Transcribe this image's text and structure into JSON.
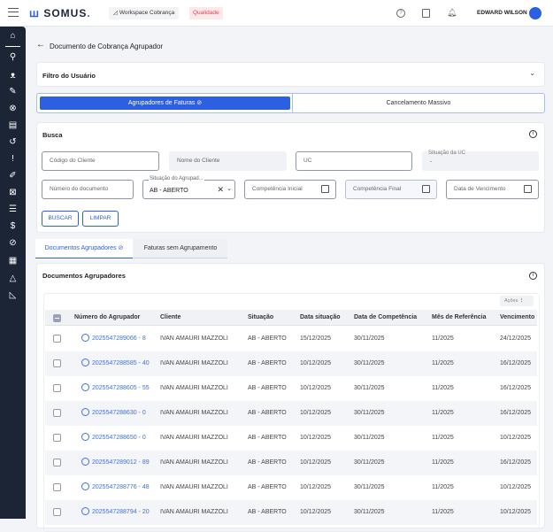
{
  "header": {
    "logo": "SOMUS",
    "workspace": "Workspace Cobrança",
    "env_badge": "Qualidade",
    "user": "EDWARD WILSON"
  },
  "page": {
    "title": "Documento de Cobrança Agrupador"
  },
  "filtro": {
    "title": "Filtro do Usuário"
  },
  "main_tabs": [
    {
      "label": "Agrupadores de Faturas ⊘"
    },
    {
      "label": "Cancelamento Massivo"
    }
  ],
  "busca": {
    "title": "Busca",
    "fields": {
      "codigo_cliente": "Código do Cliente",
      "nome_cliente": "Nome do Cliente",
      "uc": "UC",
      "situacao_uc_label": "Situação da UC",
      "situacao_uc_value": "-",
      "numero_documento": "Número do documento",
      "situacao_agrupador_label": "Situação do Agrupad...",
      "situacao_agrupador_value": "AB - ABERTO",
      "competencia_inicial": "Competência Inicial",
      "competencia_final": "Competência Final",
      "data_vencimento": "Data de Vencimento"
    },
    "buscar": "BUSCAR",
    "limpar": "LIMPAR"
  },
  "sub_tabs": [
    {
      "label": "Documentos Agrupadores ⊘"
    },
    {
      "label": "Faturas sem Agrupamento"
    }
  ],
  "docs": {
    "title": "Documentos Agrupadores",
    "acoes": "Ações",
    "columns": [
      "Número do Agrupador",
      "Cliente",
      "Situação",
      "Data situação",
      "Data de Competência",
      "Mês de Referência",
      "Vencimento"
    ],
    "rows": [
      [
        "2025547289066 - 8",
        "IVAN AMAURI MAZZOLI",
        "AB - ABERTO",
        "15/12/2025",
        "30/11/2025",
        "11/2025",
        "24/12/2025"
      ],
      [
        "2025547288585 - 40",
        "IVAN AMAURI MAZZOLI",
        "AB - ABERTO",
        "10/12/2025",
        "30/11/2025",
        "11/2025",
        "16/12/2025"
      ],
      [
        "2025547288605 - 55",
        "IVAN AMAURI MAZZOLI",
        "AB - ABERTO",
        "10/12/2025",
        "30/11/2025",
        "11/2025",
        "16/12/2025"
      ],
      [
        "2025547288630 - 0",
        "IVAN AMAURI MAZZOLI",
        "AB - ABERTO",
        "10/12/2025",
        "30/11/2025",
        "11/2025",
        "16/12/2025"
      ],
      [
        "2025547288650 - 0",
        "IVAN AMAURI MAZZOLI",
        "AB - ABERTO",
        "10/12/2025",
        "30/11/2025",
        "11/2025",
        "10/12/2025"
      ],
      [
        "2025547289012 - 89",
        "IVAN AMAURI MAZZOLI",
        "AB - ABERTO",
        "10/12/2025",
        "30/11/2025",
        "11/2025",
        "16/12/2025"
      ],
      [
        "2025547288776 - 48",
        "IVAN AMAURI MAZZOLI",
        "AB - ABERTO",
        "10/12/2025",
        "30/11/2025",
        "11/2025",
        "10/12/2025"
      ],
      [
        "2025547288794 - 20",
        "IVAN AMAURI MAZZOLI",
        "AB - ABERTO",
        "10/12/2025",
        "30/11/2025",
        "11/2025",
        "10/12/2025"
      ]
    ]
  },
  "colors": {
    "accent": "#2d5fe3",
    "sidebar": "#1c2536",
    "badge_bg": "#fde8ea",
    "badge_text": "#e0455a"
  }
}
